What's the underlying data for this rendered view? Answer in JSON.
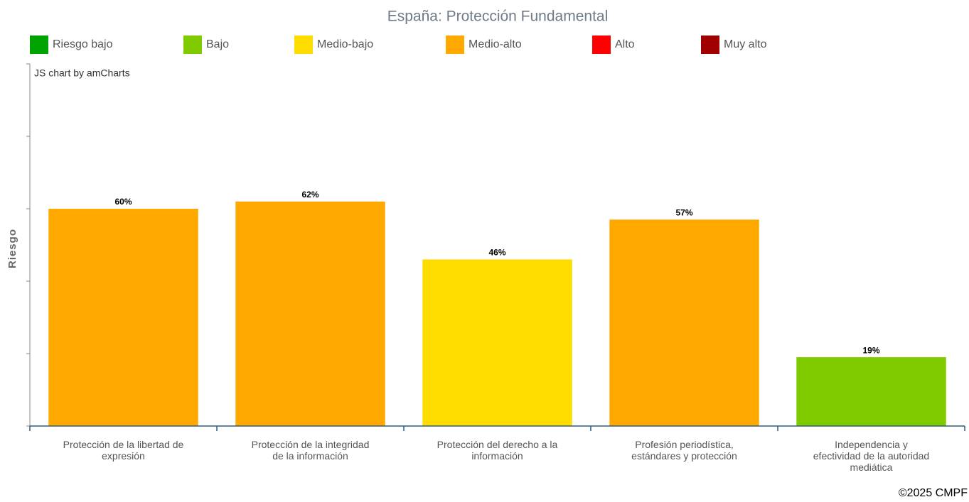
{
  "chart_data": {
    "type": "bar",
    "title": "España: Protección Fundamental",
    "y_label": "Riesgo",
    "credit": "JS chart by amCharts",
    "copyright": "©2025 CMPF",
    "legend": [
      {
        "name": "Riesgo bajo",
        "color": "#00a400"
      },
      {
        "name": "Bajo",
        "color": "#7fcb00"
      },
      {
        "name": "Medio-bajo",
        "color": "#fedc00"
      },
      {
        "name": "Medio-alto",
        "color": "#fea800"
      },
      {
        "name": "Alto",
        "color": "#ff0000"
      },
      {
        "name": "Muy alto",
        "color": "#a10000"
      }
    ],
    "categories": [
      "Protección de la libertad de expresión",
      "Protección de la integridad de la información",
      "Protección del derecho a la información",
      "Profesión periodística, estándares y protección",
      "Independencia y efectividad de la autoridad mediática"
    ],
    "values": [
      60,
      62,
      46,
      57,
      19
    ],
    "value_labels": [
      "60%",
      "62%",
      "46%",
      "57%",
      "19%"
    ],
    "colors": [
      "#fea800",
      "#fea800",
      "#fedc00",
      "#fea800",
      "#7fcb00"
    ],
    "ylim": [
      0,
      100
    ],
    "yticks": [
      0,
      20,
      40,
      60,
      80,
      100
    ]
  }
}
